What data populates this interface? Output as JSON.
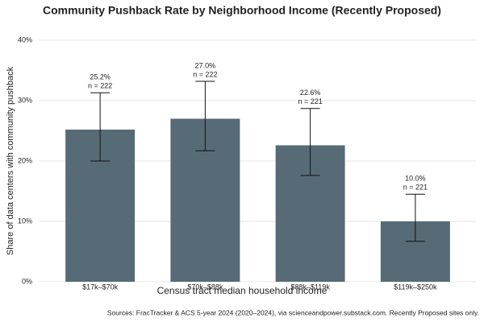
{
  "chart_data": {
    "type": "bar",
    "title": "Community Pushback Rate by Neighborhood Income (Recently Proposed)",
    "x_label": "Census tract median household income",
    "y_label": "Share of data centers with community pushback",
    "source": "Sources: FracTracker & ACS 5-year 2024 (2020–2024), via scienceandpower.substack.com. Recently Proposed sites only.",
    "categories": [
      "$17k–$70k",
      "$70k–$88k",
      "$88k–$119k",
      "$119k–$250k"
    ],
    "values": [
      25.2,
      27.0,
      22.6,
      10.0
    ],
    "value_labels": [
      "25.2%",
      "27.0%",
      "22.6%",
      "10.0%"
    ],
    "n_labels": [
      "n = 222",
      "n = 222",
      "n = 221",
      "n = 221"
    ],
    "ci_low": [
      20.0,
      21.7,
      17.6,
      6.7
    ],
    "ci_high": [
      31.3,
      33.2,
      28.7,
      14.5
    ],
    "color": "#566b76",
    "ylim": [
      0,
      40
    ],
    "yticks": [
      {
        "value": 0,
        "label": "0%"
      },
      {
        "value": 10,
        "label": "10%"
      },
      {
        "value": 20,
        "label": "20%"
      },
      {
        "value": 30,
        "label": "30%"
      },
      {
        "value": 40,
        "label": "40%"
      }
    ],
    "grid": true
  }
}
